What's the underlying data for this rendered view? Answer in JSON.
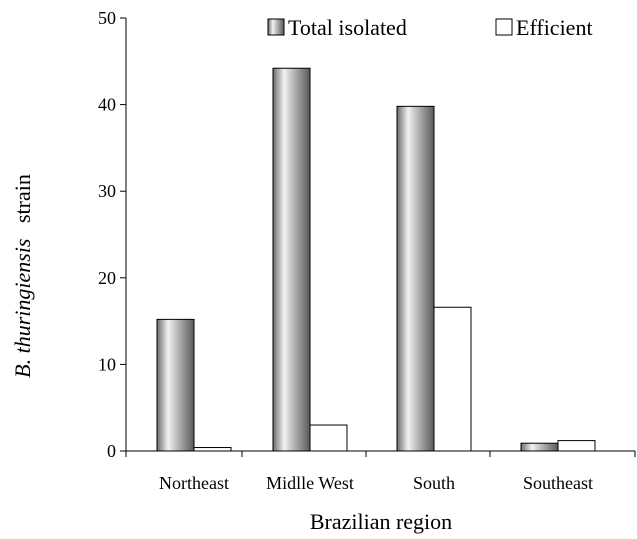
{
  "chart_data": {
    "type": "bar",
    "categories": [
      "Northeast",
      "Midlle West",
      "South",
      "Southeast"
    ],
    "series": [
      {
        "name": "Total isolated",
        "values": [
          15.2,
          44.2,
          39.8,
          0.9
        ],
        "color": "#9a9a9a",
        "fill_style": "gradient-gray"
      },
      {
        "name": "Efficient",
        "values": [
          0.4,
          3.0,
          16.6,
          1.2
        ],
        "color": "#ffffff",
        "fill_style": "white-outline"
      }
    ],
    "title": "",
    "xlabel": "Brazilian region",
    "ylabel": {
      "italic": "B. thuringiensis",
      "normal": "strain"
    },
    "ylim": [
      0,
      50
    ],
    "yticks": [
      0,
      10,
      20,
      30,
      40,
      50
    ],
    "grid": false,
    "legend": "top-right"
  }
}
